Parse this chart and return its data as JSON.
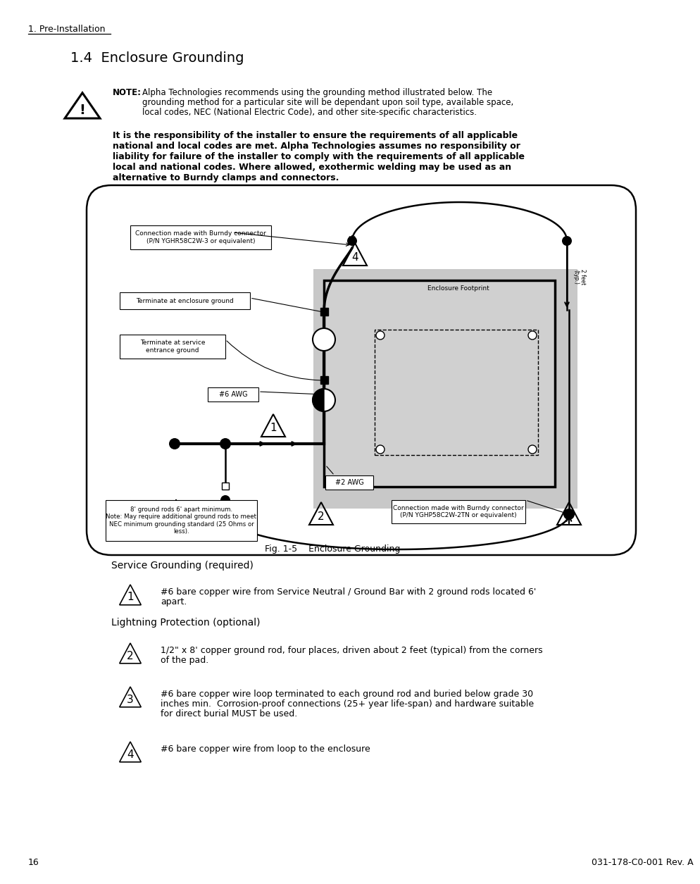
{
  "page_title": "1. Pre-Installation",
  "section_title": "1.4  Enclosure Grounding",
  "note_bold": "NOTE:",
  "note_line1": "Alpha Technologies recommends using the grounding method illustrated below. The",
  "note_line2": "grounding method for a particular site will be dependant upon soil type, available space,",
  "note_line3": "local codes, NEC (National Electric Code), and other site-specific characteristics.",
  "bold_lines": [
    "It is the responsibility of the installer to ensure the requirements of all applicable",
    "national and local codes are met. Alpha Technologies assumes no responsibility or",
    "liability for failure of the installer to comply with the requirements of all applicable",
    "local and national codes. Where allowed, exothermic welding may be used as an",
    "alternative to Burndy clamps and connectors."
  ],
  "fig_label": "Fig. 1-5    Enclosure Grounding",
  "service_grounding_title": "Service Grounding (required)",
  "item1_text_line1": "#6 bare copper wire from Service Neutral / Ground Bar with 2 ground rods located 6'",
  "item1_text_line2": "apart.",
  "lightning_title": "Lightning Protection (optional)",
  "item2_text_line1": "1/2\" x 8' copper ground rod, four places, driven about 2 feet (typical) from the corners",
  "item2_text_line2": "of the pad.",
  "item3_text_line1": "#6 bare copper wire loop terminated to each ground rod and buried below grade 30",
  "item3_text_line2": "inches min.  Corrosion-proof connections (25+ year life-span) and hardware suitable",
  "item3_text_line3": "for direct burial MUST be used.",
  "item4_text": "#6 bare copper wire from loop to the enclosure",
  "page_number": "16",
  "doc_number": "031-178-C0-001 Rev. A",
  "bg_color": "#ffffff",
  "label_burndy_top_l1": "Connection made with Burndy connector",
  "label_burndy_top_l2": "(P/N YGHR58C2W-3 or equivalent)",
  "label_enclosure_ground": "Terminate at enclosure ground",
  "label_service_l1": "Terminate at service",
  "label_service_l2": "entrance ground",
  "label_6awg": "#6 AWG",
  "label_2awg": "#2 AWG",
  "label_ground_rods_l1": "8' ground rods 6' apart minimum.",
  "label_ground_rods_l2": "Note: May require additional ground rods to meet",
  "label_ground_rods_l3": "NEC minimum grounding standard (25 Ohms or",
  "label_ground_rods_l4": "less).",
  "label_burndy_bot_l1": "Connection made with Burndy connector",
  "label_burndy_bot_l2": "(P/N YGHP58C2W-2TN or equivalent)",
  "label_enclosure_footprint": "Enclosure Footprint",
  "label_2feet_l1": "2 feet",
  "label_2feet_l2": "(typ.)"
}
